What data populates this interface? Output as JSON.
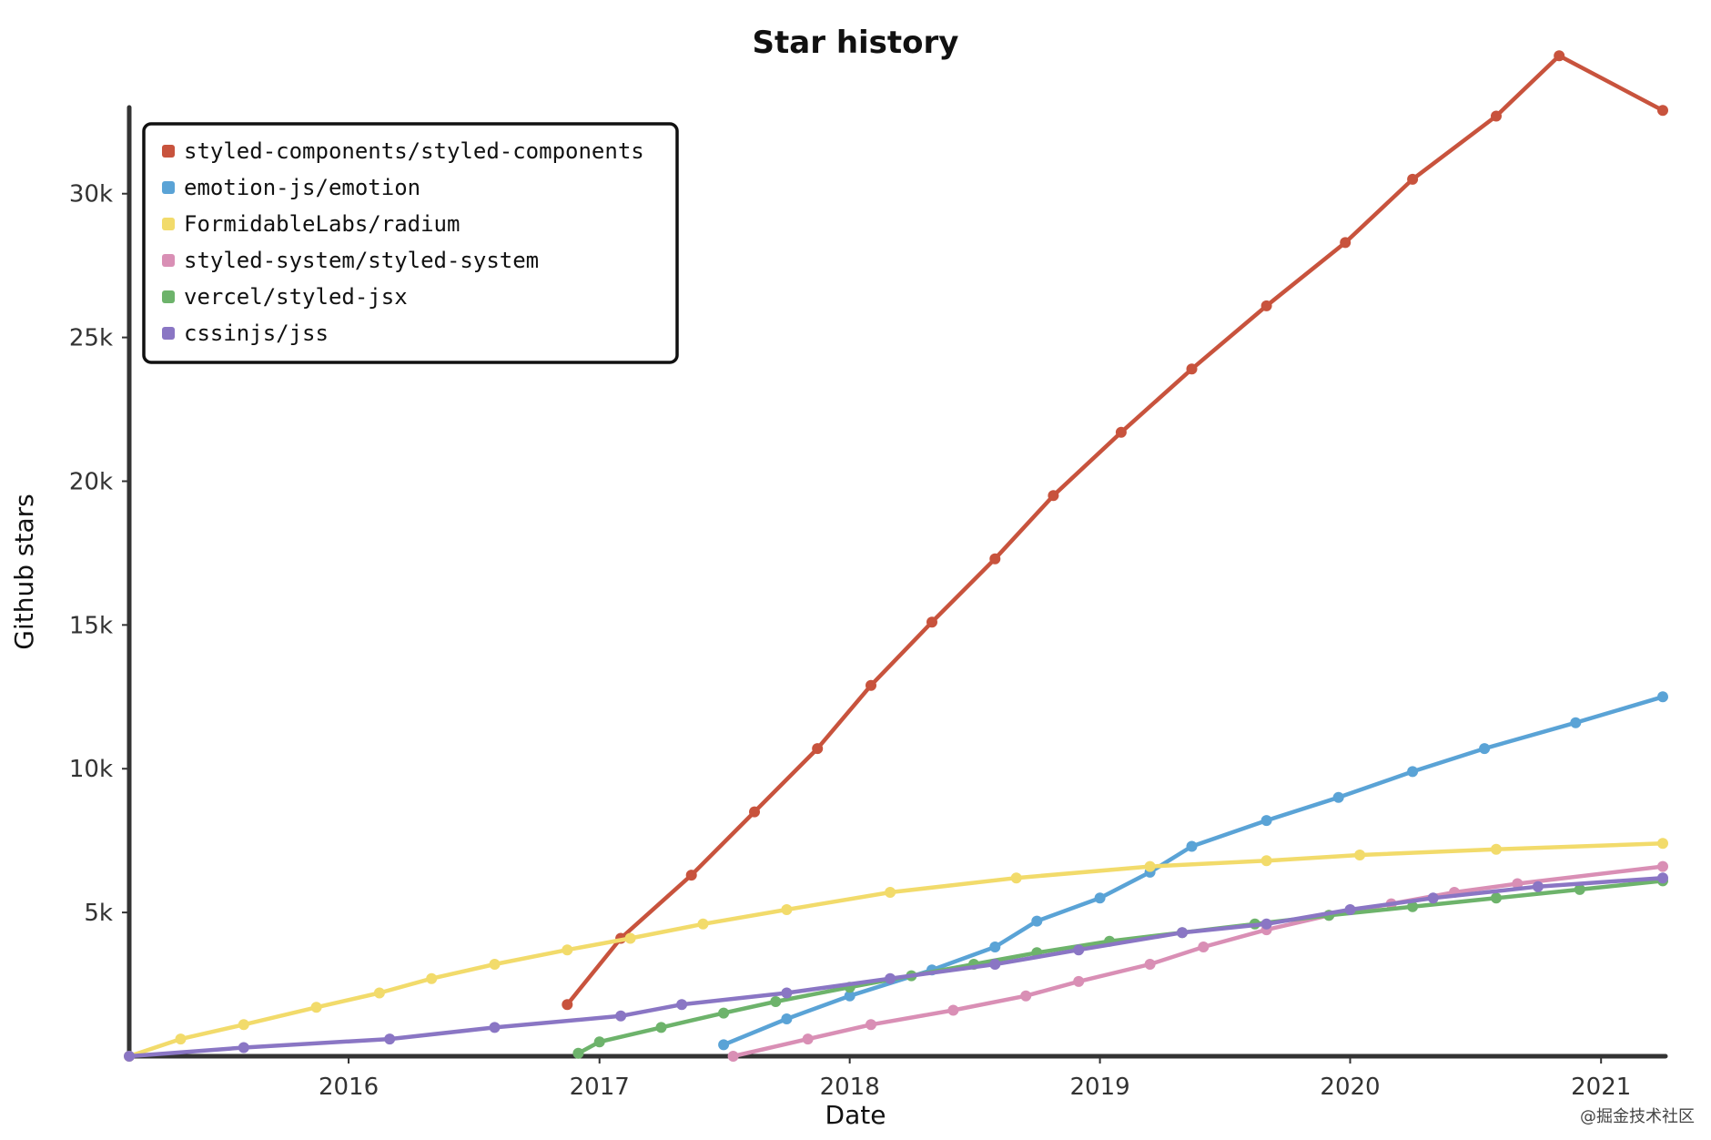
{
  "watermark": "@掘金技术社区",
  "chart_data": {
    "type": "line",
    "title": "Star history",
    "xlabel": "Date",
    "ylabel": "Github stars",
    "x_range": [
      "2015-02-15",
      "2021-04-05"
    ],
    "ylim": [
      0,
      33000
    ],
    "x_ticks": [
      {
        "date": "2016-01-01",
        "label": "2016"
      },
      {
        "date": "2017-01-01",
        "label": "2017"
      },
      {
        "date": "2018-01-01",
        "label": "2018"
      },
      {
        "date": "2019-01-01",
        "label": "2019"
      },
      {
        "date": "2020-01-01",
        "label": "2020"
      },
      {
        "date": "2021-01-01",
        "label": "2021"
      }
    ],
    "y_ticks": [
      {
        "value": 5000,
        "label": "5k"
      },
      {
        "value": 10000,
        "label": "10k"
      },
      {
        "value": 15000,
        "label": "15k"
      },
      {
        "value": 20000,
        "label": "20k"
      },
      {
        "value": 25000,
        "label": "25k"
      },
      {
        "value": 30000,
        "label": "30k"
      }
    ],
    "legend_position": "top-left",
    "grid": false,
    "series": [
      {
        "name": "styled-components/styled-components",
        "color": "#c8533d",
        "points": [
          [
            "2016-11-15",
            1800
          ],
          [
            "2017-02-01",
            4100
          ],
          [
            "2017-05-15",
            6300
          ],
          [
            "2017-08-15",
            8500
          ],
          [
            "2017-11-15",
            10700
          ],
          [
            "2018-02-01",
            12900
          ],
          [
            "2018-05-01",
            15100
          ],
          [
            "2018-08-01",
            17300
          ],
          [
            "2018-10-25",
            19500
          ],
          [
            "2019-02-01",
            21700
          ],
          [
            "2019-05-15",
            23900
          ],
          [
            "2019-09-01",
            26100
          ],
          [
            "2019-12-25",
            28300
          ],
          [
            "2020-04-01",
            30500
          ],
          [
            "2020-08-01",
            32700
          ],
          [
            "2020-11-01",
            34800
          ],
          [
            "2021-04-01",
            32900
          ]
        ]
      },
      {
        "name": "emotion-js/emotion",
        "color": "#5aa3d6",
        "points": [
          [
            "2017-07-01",
            400
          ],
          [
            "2017-10-01",
            1300
          ],
          [
            "2018-01-01",
            2100
          ],
          [
            "2018-05-01",
            3000
          ],
          [
            "2018-08-01",
            3800
          ],
          [
            "2018-10-01",
            4700
          ],
          [
            "2019-01-01",
            5500
          ],
          [
            "2019-03-15",
            6400
          ],
          [
            "2019-05-15",
            7300
          ],
          [
            "2019-09-01",
            8200
          ],
          [
            "2019-12-15",
            9000
          ],
          [
            "2020-04-01",
            9900
          ],
          [
            "2020-07-15",
            10700
          ],
          [
            "2020-11-25",
            11600
          ],
          [
            "2021-04-01",
            12500
          ]
        ]
      },
      {
        "name": "FormidableLabs/radium",
        "color": "#f2db6b",
        "points": [
          [
            "2015-02-15",
            0
          ],
          [
            "2015-05-01",
            600
          ],
          [
            "2015-08-01",
            1100
          ],
          [
            "2015-11-15",
            1700
          ],
          [
            "2016-02-15",
            2200
          ],
          [
            "2016-05-01",
            2700
          ],
          [
            "2016-08-01",
            3200
          ],
          [
            "2016-11-15",
            3700
          ],
          [
            "2017-02-15",
            4100
          ],
          [
            "2017-06-01",
            4600
          ],
          [
            "2017-10-01",
            5100
          ],
          [
            "2018-03-01",
            5700
          ],
          [
            "2018-09-01",
            6200
          ],
          [
            "2019-03-15",
            6600
          ],
          [
            "2019-09-01",
            6800
          ],
          [
            "2020-01-15",
            7000
          ],
          [
            "2020-08-01",
            7200
          ],
          [
            "2021-04-01",
            7400
          ]
        ]
      },
      {
        "name": "styled-system/styled-system",
        "color": "#d98fb5",
        "points": [
          [
            "2017-07-15",
            0
          ],
          [
            "2017-11-01",
            600
          ],
          [
            "2018-02-01",
            1100
          ],
          [
            "2018-06-01",
            1600
          ],
          [
            "2018-09-15",
            2100
          ],
          [
            "2018-12-01",
            2600
          ],
          [
            "2019-03-15",
            3200
          ],
          [
            "2019-06-01",
            3800
          ],
          [
            "2019-09-01",
            4400
          ],
          [
            "2019-12-01",
            4900
          ],
          [
            "2020-03-01",
            5300
          ],
          [
            "2020-06-01",
            5700
          ],
          [
            "2020-09-01",
            6000
          ],
          [
            "2021-04-01",
            6600
          ]
        ]
      },
      {
        "name": "vercel/styled-jsx",
        "color": "#6db36b",
        "points": [
          [
            "2016-12-01",
            100
          ],
          [
            "2017-01-01",
            500
          ],
          [
            "2017-04-01",
            1000
          ],
          [
            "2017-07-01",
            1500
          ],
          [
            "2017-09-15",
            1900
          ],
          [
            "2018-01-01",
            2400
          ],
          [
            "2018-04-01",
            2800
          ],
          [
            "2018-07-01",
            3200
          ],
          [
            "2018-10-01",
            3600
          ],
          [
            "2019-01-15",
            4000
          ],
          [
            "2019-05-01",
            4300
          ],
          [
            "2019-08-15",
            4600
          ],
          [
            "2019-12-01",
            4900
          ],
          [
            "2020-04-01",
            5200
          ],
          [
            "2020-08-01",
            5500
          ],
          [
            "2020-12-01",
            5800
          ],
          [
            "2021-04-01",
            6100
          ]
        ]
      },
      {
        "name": "cssinjs/jss",
        "color": "#8a76c4",
        "points": [
          [
            "2015-02-15",
            0
          ],
          [
            "2015-08-01",
            300
          ],
          [
            "2016-03-01",
            600
          ],
          [
            "2016-08-01",
            1000
          ],
          [
            "2017-02-01",
            1400
          ],
          [
            "2017-05-01",
            1800
          ],
          [
            "2017-10-01",
            2200
          ],
          [
            "2018-03-01",
            2700
          ],
          [
            "2018-08-01",
            3200
          ],
          [
            "2018-12-01",
            3700
          ],
          [
            "2019-05-01",
            4300
          ],
          [
            "2019-09-01",
            4600
          ],
          [
            "2020-01-01",
            5100
          ],
          [
            "2020-05-01",
            5500
          ],
          [
            "2020-10-01",
            5900
          ],
          [
            "2021-04-01",
            6200
          ]
        ]
      }
    ]
  }
}
